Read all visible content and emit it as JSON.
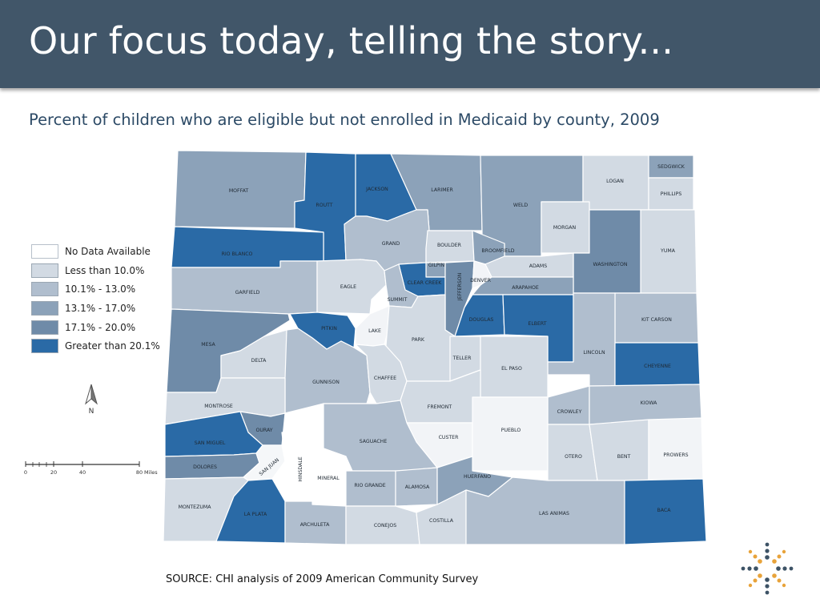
{
  "slide": {
    "title": "Our focus today, telling the story...",
    "subtitle": "Percent of children who are eligible but not enrolled in Medicaid by county, 2009",
    "source": "SOURCE: CHI analysis of 2009 American Community Survey"
  },
  "colors": {
    "header_bg": "#415669",
    "nodata": "#ffffff",
    "lt10": "#d2dae3",
    "c10_13": "#b0bece",
    "c13_17": "#8ca2b9",
    "c17_20": "#6f8ba8",
    "gt20": "#2a6aa6",
    "border": "#ffffff"
  },
  "legend": [
    {
      "label": "No Data Available",
      "class": "nodata"
    },
    {
      "label": "Less than 10.0%",
      "class": "lt10"
    },
    {
      "label": "10.1% - 13.0%",
      "class": "c10_13"
    },
    {
      "label": "13.1% - 17.0%",
      "class": "c13_17"
    },
    {
      "label": "17.1% - 20.0%",
      "class": "c17_20"
    },
    {
      "label": "Greater than 20.1%",
      "class": "gt20"
    }
  ],
  "north_label": "N",
  "scale": {
    "ticks": [
      "0",
      "20",
      "40",
      "80"
    ],
    "unit": "Miles"
  },
  "counties": {
    "moffat": "MOFFAT",
    "routt": "ROUTT",
    "jackson": "JACKSON",
    "larimer": "LARIMER",
    "weld": "WELD",
    "logan": "LOGAN",
    "sedgwick": "SEDGWICK",
    "phillips": "PHILLIPS",
    "morgan": "MORGAN",
    "yuma": "YUMA",
    "rio_blanco": "RIO BLANCO",
    "grand": "GRAND",
    "boulder": "BOULDER",
    "broomfield": "BROOMFIELD",
    "adams": "ADAMS",
    "washington": "WASHINGTON",
    "garfield": "GARFIELD",
    "eagle": "EAGLE",
    "gilpin": "GILPIN",
    "clear_creek": "CLEAR CREEK",
    "jefferson": "JEFFERSON",
    "denver": "DENVER",
    "arapahoe": "ARAPAHOE",
    "summit": "SUMMIT",
    "mesa": "MESA",
    "pitkin": "PITKIN",
    "lake": "LAKE",
    "douglas": "DOUGLAS",
    "elbert": "ELBERT",
    "kit_carson": "KIT CARSON",
    "park": "PARK",
    "delta": "DELTA",
    "teller": "TELLER",
    "lincoln": "LINCOLN",
    "el_paso": "EL PASO",
    "cheyenne": "CHEYENNE",
    "gunnison": "GUNNISON",
    "chaffee": "CHAFFEE",
    "fremont": "FREMONT",
    "montrose": "MONTROSE",
    "crowley": "CROWLEY",
    "kiowa": "KIOWA",
    "ouray": "OURAY",
    "custer": "CUSTER",
    "pueblo": "PUEBLO",
    "saguache": "SAGUACHE",
    "san_miguel": "SAN MIGUEL",
    "otero": "OTERO",
    "bent": "BENT",
    "prowers": "PROWERS",
    "dolores": "DOLORES",
    "san_juan": "SAN JUAN",
    "hinsdale": "HINSDALE",
    "mineral": "MINERAL",
    "rio_grande": "RIO GRANDE",
    "alamosa": "ALAMOSA",
    "huerfano": "HUERFANO",
    "montezuma": "MONTEZUMA",
    "la_plata": "LA PLATA",
    "archuleta": "ARCHULETA",
    "conejos": "CONEJOS",
    "costilla": "COSTILLA",
    "las_animas": "LAS ANIMAS",
    "baca": "BACA"
  }
}
